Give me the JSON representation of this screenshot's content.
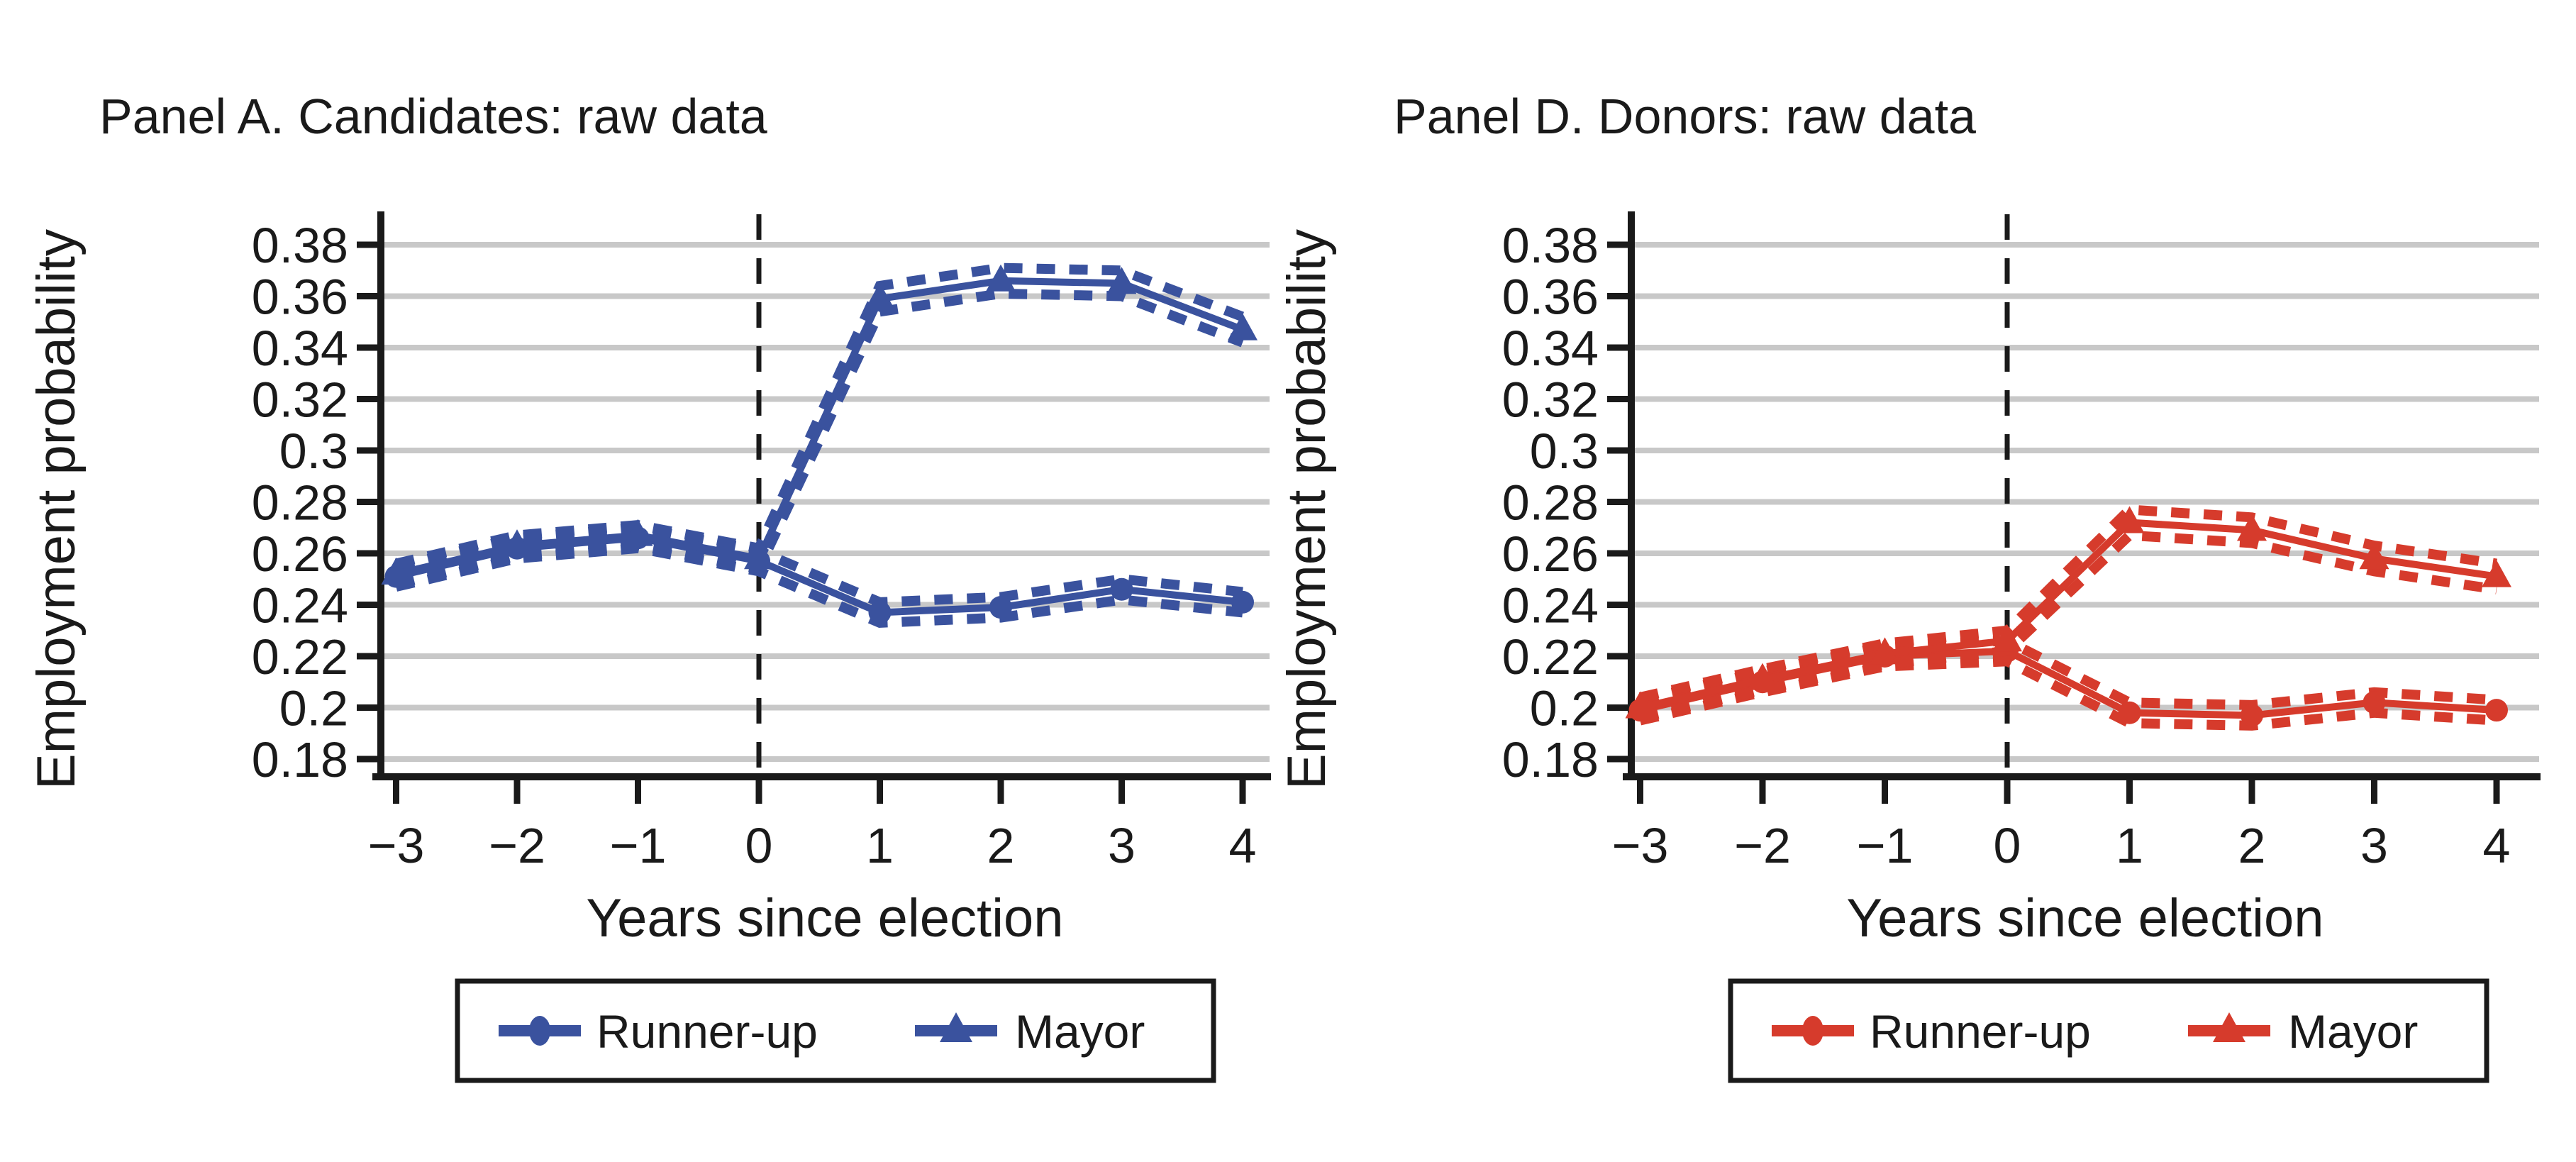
{
  "figure": {
    "background": "#ffffff",
    "text_color": "#1a1a1a",
    "grid_color": "#c8c8c8",
    "axis_color": "#1a1a1a",
    "event_line": {
      "x": 0,
      "style": "dashed",
      "color": "#1a1a1a"
    }
  },
  "chart_data": [
    {
      "type": "line",
      "panel": "A",
      "title": "Panel A. Candidates: raw data",
      "xlabel": "Years since election",
      "ylabel": "Employment probability",
      "x": [
        -3,
        -2,
        -1,
        0,
        1,
        2,
        3,
        4
      ],
      "xtick_labels": [
        "−3",
        "−2",
        "−1",
        "0",
        "1",
        "2",
        "3",
        "4"
      ],
      "ytick_values": [
        0.38,
        0.36,
        0.34,
        0.32,
        0.3,
        0.28,
        0.26,
        0.24,
        0.22,
        0.2,
        0.18
      ],
      "ytick_labels": [
        "0.38",
        "0.36",
        "0.34",
        "0.32",
        "0.3",
        "0.28",
        "0.26",
        "0.24",
        "0.22",
        "0.2",
        "0.18"
      ],
      "xlim": [
        -3,
        4
      ],
      "ylim": [
        0.18,
        0.38
      ],
      "grid": true,
      "legend_position": "bottom",
      "event_line_x": 0,
      "accent_color": "#3a529e",
      "series": [
        {
          "name": "Runner-up",
          "marker": "circle",
          "color": "#3a529e",
          "values": [
            0.251,
            0.262,
            0.266,
            0.257,
            0.237,
            0.239,
            0.246,
            0.241
          ],
          "ci": [
            0.004,
            0.004,
            0.004,
            0.004,
            0.004,
            0.004,
            0.004,
            0.004
          ]
        },
        {
          "name": "Mayor",
          "marker": "triangle",
          "color": "#3a529e",
          "values": [
            0.252,
            0.263,
            0.267,
            0.258,
            0.359,
            0.366,
            0.365,
            0.347
          ],
          "ci": [
            0.004,
            0.004,
            0.004,
            0.004,
            0.005,
            0.005,
            0.005,
            0.005
          ]
        }
      ]
    },
    {
      "type": "line",
      "panel": "D",
      "title": "Panel D. Donors: raw data",
      "xlabel": "Years since election",
      "ylabel": "Employment probability",
      "x": [
        -3,
        -2,
        -1,
        0,
        1,
        2,
        3,
        4
      ],
      "xtick_labels": [
        "−3",
        "−2",
        "−1",
        "0",
        "1",
        "2",
        "3",
        "4"
      ],
      "ytick_values": [
        0.38,
        0.36,
        0.34,
        0.32,
        0.3,
        0.28,
        0.26,
        0.24,
        0.22,
        0.2,
        0.18
      ],
      "ytick_labels": [
        "0.38",
        "0.36",
        "0.34",
        "0.32",
        "0.3",
        "0.28",
        "0.26",
        "0.24",
        "0.22",
        "0.2",
        "0.18"
      ],
      "xlim": [
        -3,
        4
      ],
      "ylim": [
        0.18,
        0.38
      ],
      "grid": true,
      "legend_position": "bottom",
      "event_line_x": 0,
      "accent_color": "#d63b2c",
      "series": [
        {
          "name": "Runner-up",
          "marker": "circle",
          "color": "#d63b2c",
          "values": [
            0.199,
            0.21,
            0.22,
            0.222,
            0.198,
            0.197,
            0.202,
            0.199
          ],
          "ci": [
            0.004,
            0.004,
            0.004,
            0.004,
            0.004,
            0.004,
            0.004,
            0.004
          ]
        },
        {
          "name": "Mayor",
          "marker": "triangle",
          "color": "#d63b2c",
          "values": [
            0.2,
            0.211,
            0.221,
            0.226,
            0.272,
            0.269,
            0.258,
            0.251
          ],
          "ci": [
            0.004,
            0.004,
            0.004,
            0.004,
            0.005,
            0.005,
            0.005,
            0.005
          ]
        }
      ]
    }
  ]
}
